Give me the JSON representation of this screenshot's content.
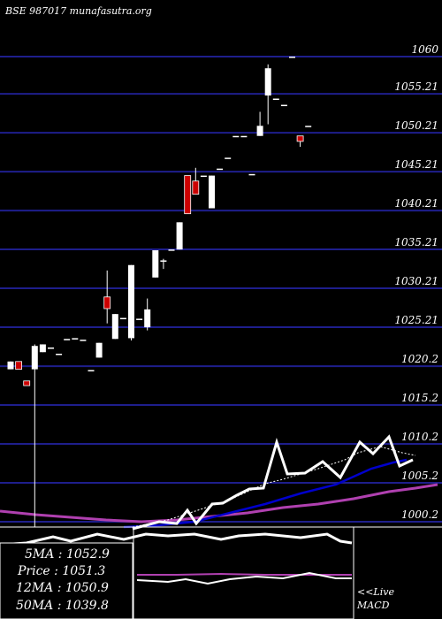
{
  "watermark": "BSE 987017 munafasutra.org",
  "colors": {
    "background": "#000000",
    "grid": "#1e1e8c",
    "bull": "#ffffff",
    "bear": "#cc0000",
    "ema_fast": "#ffffff",
    "ema_slow": "#0000cc",
    "ma_long": "#b040b0",
    "macd_line": "#ffffff",
    "macd_signal": "#b040b0"
  },
  "legend": {
    "ma5": "5MA : 1052.9",
    "price": "Price : 1051.3",
    "ma12": "12MA : 1050.9",
    "ma50": "50MA : 1039.8"
  },
  "macd_label": [
    "<<Live",
    "MACD"
  ],
  "chart_data": {
    "type": "candlestick",
    "y_ticks": [
      {
        "value": 1060,
        "label": "1060"
      },
      {
        "value": 1055.21,
        "label": "1055.21"
      },
      {
        "value": 1050.21,
        "label": "1050.21"
      },
      {
        "value": 1045.21,
        "label": "1045.21"
      },
      {
        "value": 1040.21,
        "label": "1040.21"
      },
      {
        "value": 1035.21,
        "label": "1035.21"
      },
      {
        "value": 1030.21,
        "label": "1030.21"
      },
      {
        "value": 1025.21,
        "label": "1025.21"
      },
      {
        "value": 1020.2,
        "label": "1020.2"
      },
      {
        "value": 1015.2,
        "label": "1015.2"
      },
      {
        "value": 1010.2,
        "label": "1010.2"
      },
      {
        "value": 1005.2,
        "label": "1005.2"
      },
      {
        "value": 1000.2,
        "label": "1000.2"
      }
    ],
    "ylim": [
      998,
      1063
    ],
    "candles": [
      {
        "o": 1019.8,
        "h": 1020.8,
        "l": 1019.8,
        "c": 1020.8
      },
      {
        "o": 1020.8,
        "h": 1020.8,
        "l": 1019.8,
        "c": 1019.8
      },
      {
        "o": 1018.3,
        "h": 1018.3,
        "l": 1017.7,
        "c": 1017.7
      },
      {
        "o": 1019.8,
        "h": 1023.0,
        "l": 999.5,
        "c": 1022.8
      },
      {
        "o": 1022.0,
        "h": 1023.0,
        "l": 1022.0,
        "c": 1023.0
      },
      {
        "o": 1022.6,
        "h": 1022.6,
        "l": 1022.6,
        "c": 1022.6
      },
      {
        "o": 1021.8,
        "h": 1021.8,
        "l": 1021.8,
        "c": 1021.8
      },
      {
        "o": 1023.7,
        "h": 1023.7,
        "l": 1023.7,
        "c": 1023.7
      },
      {
        "o": 1023.8,
        "h": 1023.8,
        "l": 1023.8,
        "c": 1023.8
      },
      {
        "o": 1023.6,
        "h": 1023.6,
        "l": 1023.6,
        "c": 1023.6
      },
      {
        "o": 1019.7,
        "h": 1019.7,
        "l": 1019.7,
        "c": 1019.7
      },
      {
        "o": 1021.3,
        "h": 1023.2,
        "l": 1021.3,
        "c": 1023.2
      },
      {
        "o": 1029.1,
        "h": 1032.5,
        "l": 1025.7,
        "c": 1027.6
      },
      {
        "o": 1023.7,
        "h": 1026.9,
        "l": 1023.7,
        "c": 1026.9
      },
      {
        "o": 1026.4,
        "h": 1026.4,
        "l": 1026.4,
        "c": 1026.4
      },
      {
        "o": 1023.8,
        "h": 1033.2,
        "l": 1023.5,
        "c": 1033.2
      },
      {
        "o": 1026.3,
        "h": 1026.3,
        "l": 1026.3,
        "c": 1026.3
      },
      {
        "o": 1025.2,
        "h": 1028.9,
        "l": 1024.8,
        "c": 1027.5
      },
      {
        "o": 1031.6,
        "h": 1035.1,
        "l": 1031.6,
        "c": 1035.1
      },
      {
        "o": 1033.8,
        "h": 1034.0,
        "l": 1032.7,
        "c": 1033.8
      },
      {
        "o": 1035.2,
        "h": 1035.2,
        "l": 1035.2,
        "c": 1035.2
      },
      {
        "o": 1035.2,
        "h": 1038.7,
        "l": 1035.2,
        "c": 1038.7
      },
      {
        "o": 1044.7,
        "h": 1044.7,
        "l": 1039.8,
        "c": 1039.8
      },
      {
        "o": 1044.0,
        "h": 1045.7,
        "l": 1042.3,
        "c": 1042.3
      },
      {
        "o": 1044.7,
        "h": 1044.7,
        "l": 1044.7,
        "c": 1044.7
      },
      {
        "o": 1040.5,
        "h": 1044.7,
        "l": 1040.5,
        "c": 1044.7
      },
      {
        "o": 1045.6,
        "h": 1045.6,
        "l": 1045.6,
        "c": 1045.6
      },
      {
        "o": 1047.0,
        "h": 1047.0,
        "l": 1047.0,
        "c": 1047.0
      },
      {
        "o": 1049.8,
        "h": 1049.8,
        "l": 1049.8,
        "c": 1049.8
      },
      {
        "o": 1049.8,
        "h": 1049.8,
        "l": 1049.8,
        "c": 1049.8
      },
      {
        "o": 1044.9,
        "h": 1044.9,
        "l": 1044.9,
        "c": 1044.9
      },
      {
        "o": 1049.8,
        "h": 1052.9,
        "l": 1049.8,
        "c": 1051.1
      },
      {
        "o": 1055.0,
        "h": 1059.0,
        "l": 1051.3,
        "c": 1058.5
      },
      {
        "o": 1054.6,
        "h": 1054.6,
        "l": 1054.6,
        "c": 1054.6
      },
      {
        "o": 1053.8,
        "h": 1053.8,
        "l": 1053.8,
        "c": 1053.8
      },
      {
        "o": 1060.0,
        "h": 1060.0,
        "l": 1060.0,
        "c": 1060.0
      },
      {
        "o": 1049.8,
        "h": 1049.8,
        "l": 1048.4,
        "c": 1049.1
      },
      {
        "o": 1051.1,
        "h": 1051.1,
        "l": 1051.1,
        "c": 1051.1
      }
    ]
  }
}
